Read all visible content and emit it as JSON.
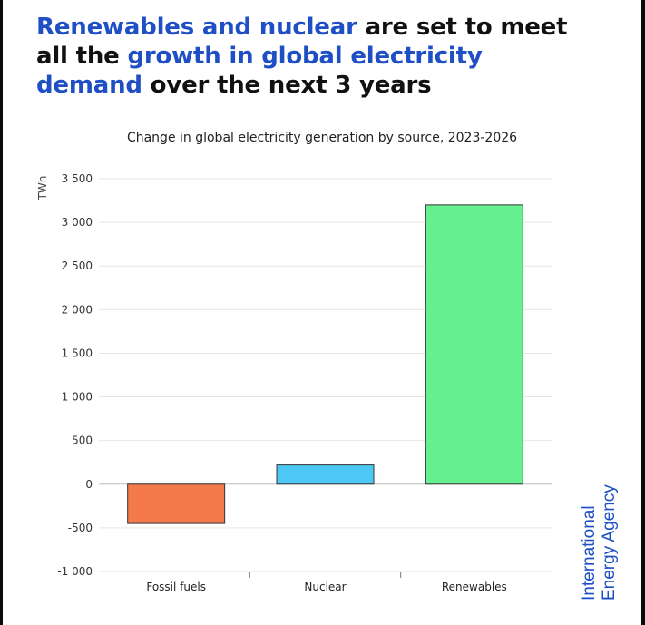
{
  "headline": {
    "line1_highlight": "Renewables and nuclear",
    "line1_rest": " are set to meet",
    "line2_plain": "all the ",
    "line2_highlight": "growth in global electricity",
    "line3_highlight": "demand",
    "line3_rest": " over the next 3 years"
  },
  "brand": {
    "line1": "International",
    "line2": "Energy Agency"
  },
  "colors": {
    "headline_accent": "#1f4fc4",
    "brand": "#1f4fc4",
    "fossil": "#f47a4c",
    "nuclear": "#4dc8f5",
    "renewables": "#66ef8f"
  },
  "chart_data": {
    "type": "bar",
    "title": "Change in global electricity generation by source, 2023-2026",
    "ylabel": "TWh",
    "xlabel": "",
    "categories": [
      "Fossil fuels",
      "Nuclear",
      "Renewables"
    ],
    "values": [
      -450,
      220,
      3200
    ],
    "bar_colors": [
      "#f47a4c",
      "#4dc8f5",
      "#66ef8f"
    ],
    "ylim": [
      -1000,
      3500
    ],
    "yticks": [
      3500,
      3000,
      2500,
      2000,
      1500,
      1000,
      500,
      0,
      -500,
      -1000
    ],
    "ytick_labels": [
      "3 500",
      "3 000",
      "2 500",
      "2 000",
      "1 500",
      "1 000",
      "500",
      "0",
      "-500",
      "-1 000"
    ],
    "grid": true,
    "legend": "none"
  }
}
